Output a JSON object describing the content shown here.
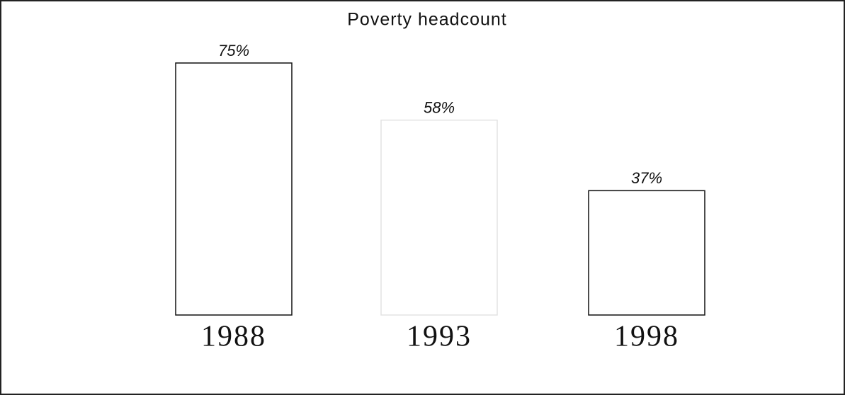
{
  "chart_data": {
    "type": "bar",
    "title": "Poverty headcount",
    "categories": [
      "1988",
      "1993",
      "1998"
    ],
    "values": [
      75,
      58,
      37
    ],
    "value_labels": [
      "75%",
      "58%",
      "37%"
    ]
  }
}
